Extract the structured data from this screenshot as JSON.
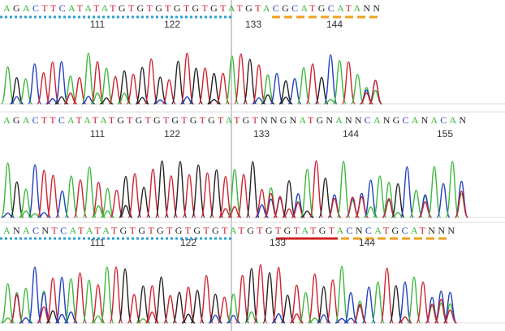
{
  "panels": [
    {
      "sequence": "AGACTTCATATATGTGTGTGTGTGTATGTACGCATGCATANN",
      "positions": [
        111,
        122,
        133,
        144
      ]
    },
    {
      "sequence": "AGACTTCATATATGTGTGTGTGTGTATGTNNGNATGNANNCANGCANACAN",
      "positions": [
        111,
        122,
        133,
        144,
        155
      ]
    },
    {
      "sequence": "ANACNTCATATATGTGTGTGTGTGTATGTGTGTATGTACNCATGCATNNN",
      "positions": [
        111,
        122,
        133,
        144
      ]
    }
  ]
}
